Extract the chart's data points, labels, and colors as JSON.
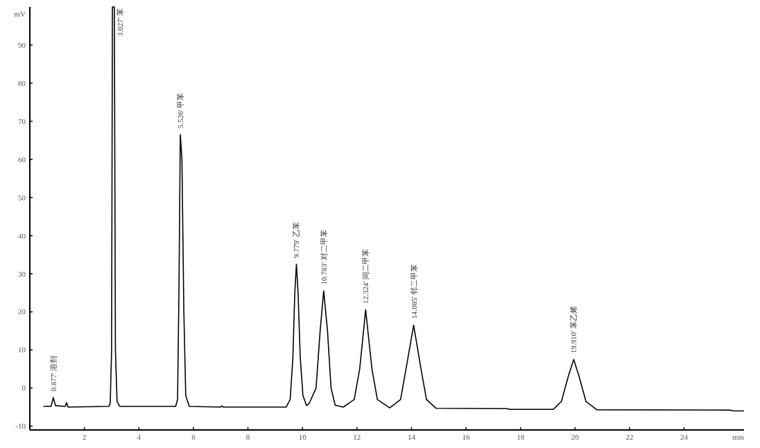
{
  "chart_data": {
    "type": "line",
    "xlabel": "min",
    "ylabel": "mV",
    "x": [
      0.5,
      0.78,
      0.86,
      0.94,
      1.3,
      1.35,
      1.4,
      2.9,
      2.95,
      3.0,
      3.03,
      3.1,
      3.14,
      3.2,
      3.3,
      5.35,
      5.42,
      5.47,
      5.52,
      5.58,
      5.65,
      5.72,
      5.85,
      7,
      7.05,
      7.1,
      9.4,
      9.55,
      9.65,
      9.72,
      9.78,
      9.84,
      9.92,
      10.02,
      10.15,
      10.25,
      10.5,
      10.65,
      10.78,
      10.92,
      11.05,
      11.2,
      11.5,
      11.9,
      12.1,
      12.32,
      12.55,
      12.75,
      13.2,
      13.6,
      13.8,
      14.08,
      14.35,
      14.55,
      14.9,
      17.5,
      17.6,
      19.2,
      19.5,
      19.75,
      19.95,
      20.15,
      20.4,
      20.8,
      25.7,
      25.8,
      26.2
    ],
    "series": [
      {
        "color": "#000000",
        "values": [
          -4.8,
          -4.8,
          -2.5,
          -4.6,
          -4.8,
          -3.8,
          -5.0,
          -4.8,
          -4.0,
          10,
          100,
          100,
          10,
          -3.5,
          -4.8,
          -4.8,
          -3,
          25,
          66.5,
          60,
          20,
          -2,
          -4.8,
          -5,
          -4.7,
          -5,
          -5,
          -3,
          8,
          25,
          32.5,
          25,
          8,
          -2,
          -4.6,
          -4,
          0,
          15,
          25.5,
          15,
          0,
          -4.5,
          -5.0,
          -3,
          5,
          20.5,
          5,
          -3,
          -5.2,
          -3,
          5,
          16.5,
          5,
          -3,
          -5.3,
          -5.4,
          -5.6,
          -5.6,
          -3.5,
          3,
          7.5,
          3,
          -3.5,
          -5.7,
          -5.8,
          -6.0,
          -6.0
        ]
      }
    ],
    "xlim": [
      0,
      26.2
    ],
    "xticks": [
      2,
      4,
      6,
      8,
      10,
      12,
      14,
      16,
      18,
      20,
      22,
      24
    ],
    "ylim": [
      -11,
      100
    ],
    "yticks": [
      -10,
      0,
      10,
      20,
      30,
      40,
      50,
      60,
      70,
      80,
      90
    ],
    "grid": false,
    "marker": "none",
    "line_style": "solid",
    "annotations": [
      {
        "text": "0.877'  溶剂",
        "x": 0.86,
        "y": -2.5
      },
      {
        "text": "3.027'  苯",
        "x": 3.05,
        "y": 100
      },
      {
        "text": "5.526'  甲苯",
        "x": 5.52,
        "y": 66.5
      },
      {
        "text": "9.779'  乙苯",
        "x": 9.78,
        "y": 32.5
      },
      {
        "text": "10.783'  对二甲苯",
        "x": 10.78,
        "y": 25.5
      },
      {
        "text": "12.324'  间二甲苯",
        "x": 12.32,
        "y": 20.5
      },
      {
        "text": "14.085'  邻二甲苯",
        "x": 14.08,
        "y": 16.5
      },
      {
        "text": "19.910'  苯乙烯",
        "x": 19.95,
        "y": 7.5
      }
    ]
  }
}
